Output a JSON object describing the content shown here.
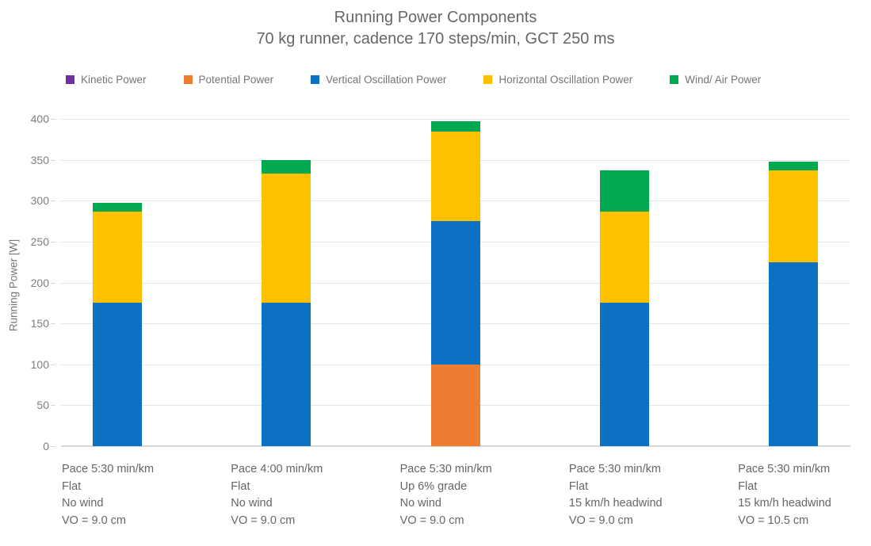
{
  "title": "Running Power Components",
  "subtitle": "70 kg runner, cadence 170 steps/min, GCT 250 ms",
  "chart_data": {
    "type": "bar",
    "stacked": true,
    "title": "Running Power Components",
    "subtitle": "70 kg runner, cadence 170 steps/min, GCT 250 ms",
    "xlabel": "",
    "ylabel": "Running Power [W]",
    "ylim": [
      0,
      400
    ],
    "ytick_step": 50,
    "grid": true,
    "legend_position": "top",
    "categories": [
      [
        "Pace 5:30 min/km",
        "Flat",
        "No wind",
        "VO = 9.0 cm"
      ],
      [
        "Pace 4:00 min/km",
        "Flat",
        "No wind",
        "VO = 9.0 cm"
      ],
      [
        "Pace 5:30 min/km",
        "Up 6% grade",
        "No wind",
        "VO = 9.0 cm"
      ],
      [
        "Pace 5:30 min/km",
        "Flat",
        "15 km/h headwind",
        "VO = 9.0 cm"
      ],
      [
        "Pace 5:30 min/km",
        "Flat",
        "15 km/h headwind",
        "VO = 10.5 cm"
      ]
    ],
    "series": [
      {
        "name": "Kinetic Power",
        "color": "#7030A0",
        "values": [
          0,
          0,
          0,
          0,
          0
        ]
      },
      {
        "name": "Potential Power",
        "color": "#ED7D31",
        "values": [
          0,
          0,
          100,
          0,
          0
        ]
      },
      {
        "name": "Vertical Oscillation Power",
        "color": "#0C71C3",
        "values": [
          175,
          175,
          175,
          175,
          225
        ]
      },
      {
        "name": "Horizontal Oscillation Power",
        "color": "#FFC000",
        "values": [
          112,
          158,
          110,
          112,
          112
        ]
      },
      {
        "name": "Wind/ Air Power",
        "color": "#00A94F",
        "values": [
          10,
          17,
          12,
          50,
          11
        ]
      }
    ]
  },
  "colors": {
    "title_text": "#666666",
    "legend_text": "#757575",
    "axis_text": "#7F7F7F",
    "category_text": "#666666",
    "gridline": "#E5E5E5",
    "baseline": "#D7D7D7",
    "background": "#FFFFFF"
  }
}
